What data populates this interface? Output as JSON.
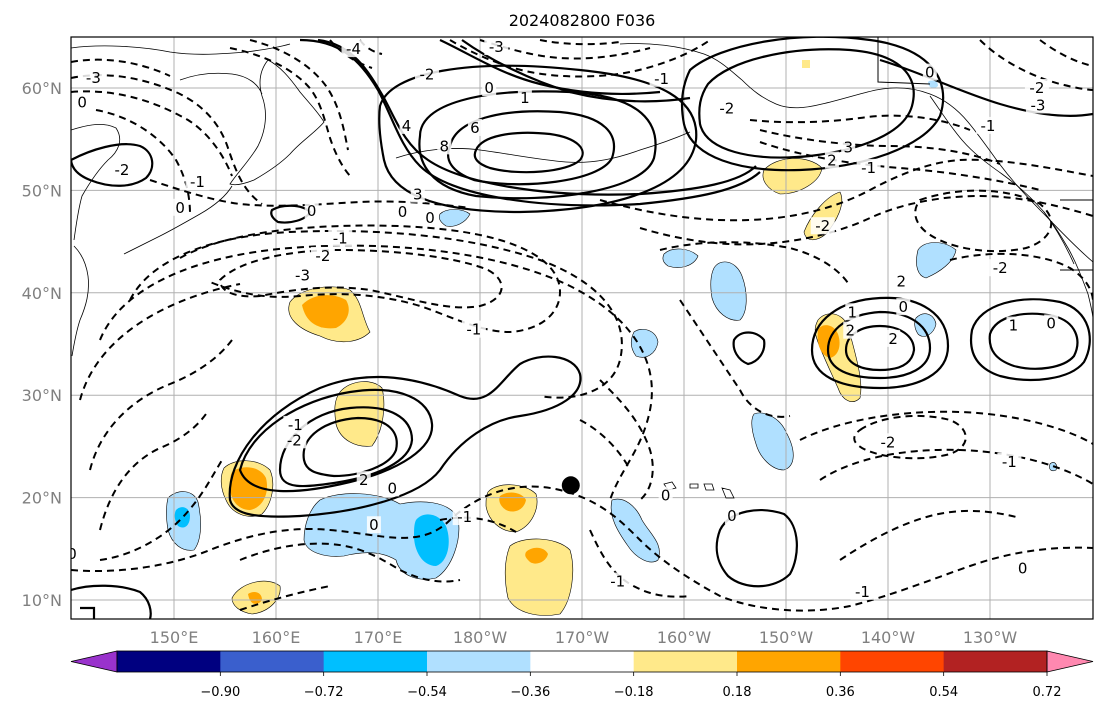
{
  "title": "2024082800 F036",
  "lat_ticks": [
    {
      "label": "60°N",
      "lat": 60
    },
    {
      "label": "50°N",
      "lat": 50
    },
    {
      "label": "40°N",
      "lat": 40
    },
    {
      "label": "30°N",
      "lat": 30
    },
    {
      "label": "20°N",
      "lat": 20
    },
    {
      "label": "10°N",
      "lat": 10
    }
  ],
  "lon_ticks": [
    {
      "label": "150°E",
      "lon": 150
    },
    {
      "label": "160°E",
      "lon": 160
    },
    {
      "label": "170°E",
      "lon": 170
    },
    {
      "label": "180°W",
      "lon": 180
    },
    {
      "label": "170°W",
      "lon": 190
    },
    {
      "label": "160°W",
      "lon": 200
    },
    {
      "label": "150°W",
      "lon": 210
    },
    {
      "label": "140°W",
      "lon": 220
    },
    {
      "label": "130°W",
      "lon": 230
    }
  ],
  "colorbar": {
    "colors": [
      "#9932cc",
      "#000080",
      "#3a5fcd",
      "#00bfff",
      "#b0e0ff",
      "#ffffff",
      "#ffe98a",
      "#ffa500",
      "#ff4500",
      "#b22222",
      "#ff88b0"
    ],
    "labels": [
      "−0.90",
      "−0.72",
      "−0.54",
      "−0.36",
      "−0.18",
      "0.18",
      "0.36",
      "0.54",
      "0.72",
      "0.90"
    ]
  },
  "contour_labels": [
    {
      "text": "8",
      "lon": 176.5,
      "lat": 54.3
    },
    {
      "text": "6",
      "lon": 179.5,
      "lat": 56.1
    },
    {
      "text": "4",
      "lon": 172.8,
      "lat": 56.3
    },
    {
      "text": "3",
      "lon": 173.9,
      "lat": 49.6
    },
    {
      "text": "0",
      "lon": 172.4,
      "lat": 47.9
    },
    {
      "text": "0",
      "lon": 175.1,
      "lat": 47.3
    },
    {
      "text": "0",
      "lon": 180.9,
      "lat": 60.0
    },
    {
      "text": "1",
      "lon": 184.4,
      "lat": 59.0
    },
    {
      "text": "-3",
      "lon": 181.6,
      "lat": 64.0
    },
    {
      "text": "-2",
      "lon": 174.8,
      "lat": 61.3
    },
    {
      "text": "-4",
      "lon": 167.6,
      "lat": 63.8
    },
    {
      "text": "-3",
      "lon": 142.1,
      "lat": 61.0
    },
    {
      "text": "0",
      "lon": 141.0,
      "lat": 58.6
    },
    {
      "text": "-2",
      "lon": 144.9,
      "lat": 52.0
    },
    {
      "text": "-1",
      "lon": 152.3,
      "lat": 50.8
    },
    {
      "text": "0",
      "lon": 150.6,
      "lat": 48.3
    },
    {
      "text": "0",
      "lon": 163.5,
      "lat": 48.0
    },
    {
      "text": "-3",
      "lon": 162.6,
      "lat": 41.7
    },
    {
      "text": "-2",
      "lon": 164.6,
      "lat": 43.6
    },
    {
      "text": "-1",
      "lon": 166.3,
      "lat": 45.3
    },
    {
      "text": "-1",
      "lon": 179.4,
      "lat": 36.4
    },
    {
      "text": "-2",
      "lon": 161.8,
      "lat": 25.6
    },
    {
      "text": "-1",
      "lon": 161.9,
      "lat": 27.1
    },
    {
      "text": "2",
      "lon": 168.6,
      "lat": 21.7
    },
    {
      "text": "0",
      "lon": 171.4,
      "lat": 20.9
    },
    {
      "text": "0",
      "lon": 169.6,
      "lat": 17.3
    },
    {
      "text": "-1",
      "lon": 178.5,
      "lat": 18.1
    },
    {
      "text": "-1",
      "lon": 137.5,
      "lat": 22.7
    },
    {
      "text": "-2",
      "lon": 138.0,
      "lat": 17.0
    },
    {
      "text": "0",
      "lon": 140.0,
      "lat": 14.5
    },
    {
      "text": "0",
      "lon": 135.6,
      "lat": 11.1
    },
    {
      "text": "-1",
      "lon": 193.5,
      "lat": 11.8
    },
    {
      "text": "0",
      "lon": 198.2,
      "lat": 20.2
    },
    {
      "text": "0",
      "lon": 204.7,
      "lat": 18.2
    },
    {
      "text": "-2",
      "lon": 220.0,
      "lat": 25.4
    },
    {
      "text": "-1",
      "lon": 231.9,
      "lat": 23.5
    },
    {
      "text": "0",
      "lon": 233.2,
      "lat": 13.1
    },
    {
      "text": "-1",
      "lon": 217.5,
      "lat": 10.8
    },
    {
      "text": "2",
      "lon": 221.3,
      "lat": 41.1
    },
    {
      "text": "-2",
      "lon": 213.6,
      "lat": 46.5
    },
    {
      "text": "-1",
      "lon": 218.1,
      "lat": 52.2
    },
    {
      "text": "-2",
      "lon": 231.0,
      "lat": 42.4
    },
    {
      "text": "1",
      "lon": 232.3,
      "lat": 36.8
    },
    {
      "text": "0",
      "lon": 236.0,
      "lat": 37.0
    },
    {
      "text": "1",
      "lon": 216.5,
      "lat": 38.1
    },
    {
      "text": "0",
      "lon": 221.5,
      "lat": 38.6
    },
    {
      "text": "2",
      "lon": 216.3,
      "lat": 36.3
    },
    {
      "text": "2",
      "lon": 220.5,
      "lat": 35.5
    },
    {
      "text": "2",
      "lon": 214.5,
      "lat": 52.9
    },
    {
      "text": "3",
      "lon": 216.1,
      "lat": 54.2
    },
    {
      "text": "0",
      "lon": 224.1,
      "lat": 61.5
    },
    {
      "text": "-2",
      "lon": 234.6,
      "lat": 60.0
    },
    {
      "text": "-1",
      "lon": 229.8,
      "lat": 56.3
    },
    {
      "text": "-3",
      "lon": 234.7,
      "lat": 58.3
    },
    {
      "text": "-1",
      "lon": 197.8,
      "lat": 60.9
    },
    {
      "text": "-2",
      "lon": 204.2,
      "lat": 58.0
    }
  ],
  "marker": {
    "lon": 188.9,
    "lat": 21.2
  }
}
